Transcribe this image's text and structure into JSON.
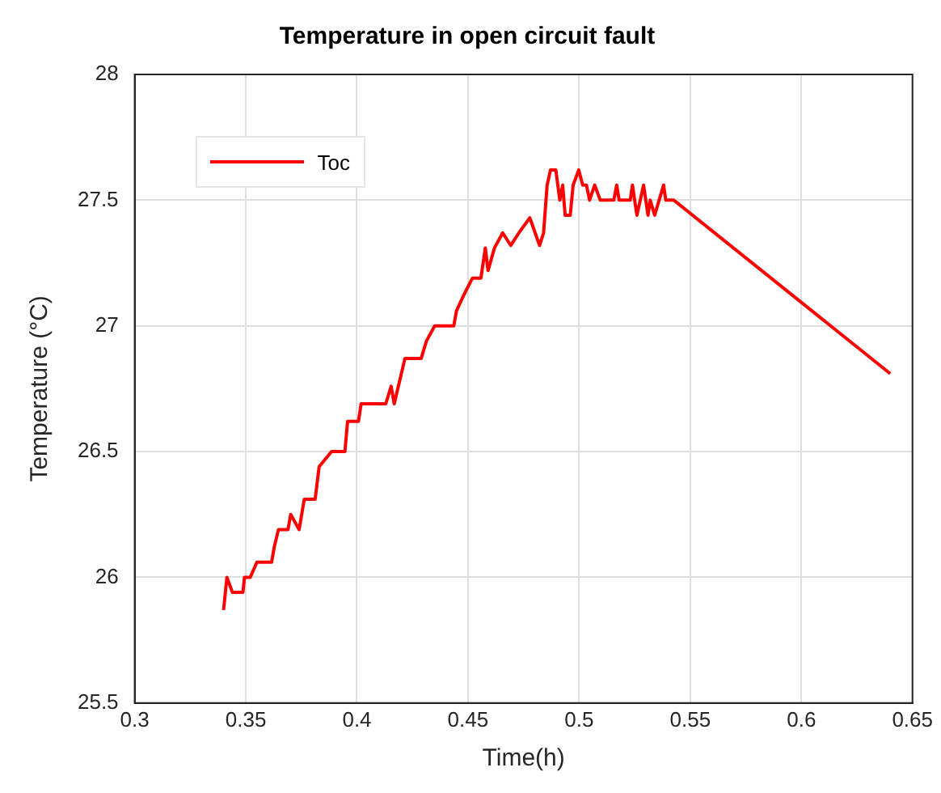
{
  "chart_data": {
    "type": "line",
    "title": "Temperature in open circuit fault",
    "xlabel": "Time(h)",
    "ylabel": "Temperature (°C)",
    "x": [
      0.34,
      0.3415,
      0.344,
      0.3487,
      0.3494,
      0.352,
      0.355,
      0.3616,
      0.3628,
      0.3647,
      0.369,
      0.3702,
      0.374,
      0.3763,
      0.3812,
      0.383,
      0.3886,
      0.3946,
      0.3958,
      0.4007,
      0.4019,
      0.413,
      0.4154,
      0.4168,
      0.4216,
      0.4289,
      0.4313,
      0.435,
      0.4436,
      0.4448,
      0.4485,
      0.452,
      0.4558,
      0.4578,
      0.459,
      0.4619,
      0.4656,
      0.4692,
      0.4729,
      0.4778,
      0.4802,
      0.4822,
      0.484,
      0.4856,
      0.4871,
      0.4895,
      0.4913,
      0.4926,
      0.4937,
      0.496,
      0.4973,
      0.4998,
      0.5016,
      0.5033,
      0.5047,
      0.507,
      0.5095,
      0.5156,
      0.5169,
      0.518,
      0.523,
      0.524,
      0.526,
      0.529,
      0.531,
      0.532,
      0.534,
      0.536,
      0.538,
      0.539,
      0.5426,
      0.64
    ],
    "series": [
      {
        "name": "Toc",
        "color": "#ff0000",
        "values": [
          25.87,
          26.0,
          25.94,
          25.94,
          26.0,
          26.0,
          26.06,
          26.06,
          26.12,
          26.19,
          26.19,
          26.25,
          26.19,
          26.31,
          26.31,
          26.44,
          26.5,
          26.5,
          26.62,
          26.62,
          26.69,
          26.69,
          26.76,
          26.69,
          26.87,
          26.87,
          26.94,
          27.0,
          27.0,
          27.06,
          27.13,
          27.19,
          27.19,
          27.31,
          27.22,
          27.31,
          27.37,
          27.32,
          27.37,
          27.43,
          27.37,
          27.32,
          27.37,
          27.56,
          27.62,
          27.62,
          27.5,
          27.56,
          27.44,
          27.44,
          27.56,
          27.62,
          27.56,
          27.56,
          27.5,
          27.56,
          27.5,
          27.5,
          27.56,
          27.5,
          27.5,
          27.56,
          27.44,
          27.56,
          27.44,
          27.5,
          27.44,
          27.5,
          27.56,
          27.5,
          27.5,
          26.81
        ]
      }
    ],
    "xlim": [
      0.3,
      0.65
    ],
    "xticks": [
      {
        "value": 0.3,
        "label": "0.3"
      },
      {
        "value": 0.35,
        "label": "0.35"
      },
      {
        "value": 0.4,
        "label": "0.4"
      },
      {
        "value": 0.45,
        "label": "0.45"
      },
      {
        "value": 0.5,
        "label": "0.5"
      },
      {
        "value": 0.55,
        "label": "0.55"
      },
      {
        "value": 0.6,
        "label": "0.6"
      },
      {
        "value": 0.65,
        "label": "0.65"
      }
    ],
    "ylim": [
      25.5,
      28
    ],
    "yticks": [
      {
        "value": 25.5,
        "label": "25.5"
      },
      {
        "value": 26,
        "label": "26"
      },
      {
        "value": 26.5,
        "label": "26.5"
      },
      {
        "value": 27,
        "label": "27"
      },
      {
        "value": 27.5,
        "label": "27.5"
      },
      {
        "value": 28,
        "label": "28"
      }
    ],
    "grid": true,
    "legend": "top left",
    "marker": "none",
    "line_style": "solid"
  }
}
